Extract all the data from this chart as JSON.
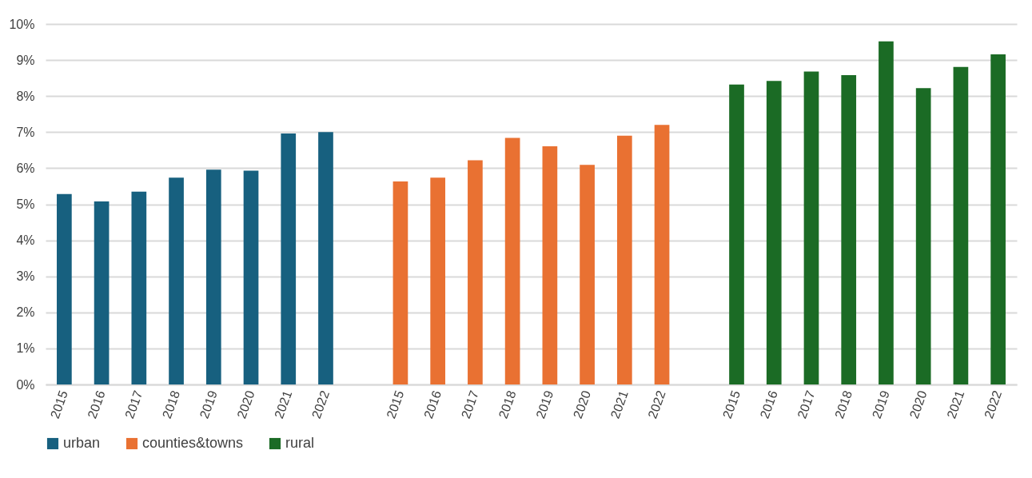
{
  "chart_data": {
    "type": "bar",
    "categories": [
      "2015",
      "2016",
      "2017",
      "2018",
      "2019",
      "2020",
      "2021",
      "2022",
      null,
      "2015",
      "2016",
      "2017",
      "2018",
      "2019",
      "2020",
      "2021",
      "2022",
      null,
      "2015",
      "2016",
      "2017",
      "2018",
      "2019",
      "2020",
      "2021",
      "2022"
    ],
    "series": [
      {
        "name": "urban",
        "color": "#17607f",
        "values": [
          5.28,
          5.08,
          5.35,
          5.74,
          5.96,
          5.93,
          6.96,
          7.0,
          null,
          null,
          null,
          null,
          null,
          null,
          null,
          null,
          null,
          null,
          null,
          null,
          null,
          null,
          null,
          null,
          null,
          null
        ]
      },
      {
        "name": "counties&towns",
        "color": "#e97132",
        "values": [
          null,
          null,
          null,
          null,
          null,
          null,
          null,
          null,
          null,
          5.63,
          5.74,
          6.22,
          6.84,
          6.61,
          6.09,
          6.9,
          7.2,
          null,
          null,
          null,
          null,
          null,
          null,
          null,
          null,
          null
        ]
      },
      {
        "name": "rural",
        "color": "#1b6b25",
        "values": [
          null,
          null,
          null,
          null,
          null,
          null,
          null,
          null,
          null,
          null,
          null,
          null,
          null,
          null,
          null,
          null,
          null,
          null,
          8.32,
          8.42,
          8.68,
          8.58,
          9.52,
          8.22,
          8.81,
          9.16
        ]
      }
    ],
    "ylim": [
      0,
      10
    ],
    "yticks": [
      {
        "value": 0,
        "label": "0%"
      },
      {
        "value": 1,
        "label": "1%"
      },
      {
        "value": 2,
        "label": "2%"
      },
      {
        "value": 3,
        "label": "3%"
      },
      {
        "value": 4,
        "label": "4%"
      },
      {
        "value": 5,
        "label": "5%"
      },
      {
        "value": 6,
        "label": "6%"
      },
      {
        "value": 7,
        "label": "7%"
      },
      {
        "value": 8,
        "label": "8%"
      },
      {
        "value": 9,
        "label": "9%"
      },
      {
        "value": 10,
        "label": "10%"
      }
    ],
    "grid": "y",
    "legend": "bottom"
  }
}
